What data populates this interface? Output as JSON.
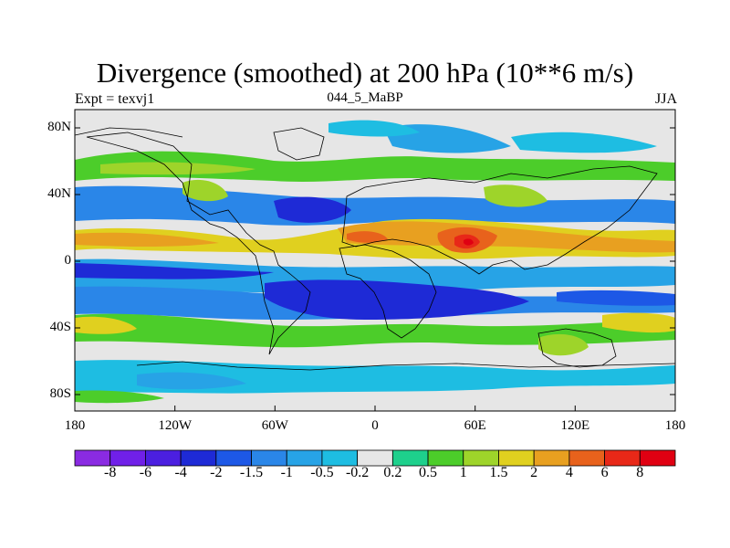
{
  "title": "Divergence (smoothed) at 200 hPa (10**6 m/s)",
  "subtitle_left": "Expt = texvj1",
  "subtitle_center": "044_5_MaBP",
  "subtitle_right": "JJA",
  "lat_axis": [
    "80N",
    "40N",
    "0",
    "40S",
    "80S"
  ],
  "lon_axis": [
    "180",
    "120W",
    "60W",
    "0",
    "60E",
    "120E",
    "180"
  ],
  "colorbar": {
    "labels": [
      "-8",
      "-6",
      "-4",
      "-2",
      "-1.5",
      "-1",
      "-0.5",
      "-0.2",
      "0.2",
      "0.5",
      "1",
      "1.5",
      "2",
      "4",
      "6",
      "8"
    ],
    "colors": [
      "#8a2be2",
      "#7020e8",
      "#4b1fe0",
      "#1e2ad6",
      "#1d58e6",
      "#2a86e8",
      "#27a3e6",
      "#1ebde2",
      "#e6e6e6",
      "#1ed08c",
      "#4ccd2a",
      "#9ed42a",
      "#e0d01f",
      "#e8a020",
      "#e8621c",
      "#e82818",
      "#e00012"
    ]
  },
  "colors": {
    "background_field": "#e6e6e6",
    "coastline": "#000000"
  }
}
